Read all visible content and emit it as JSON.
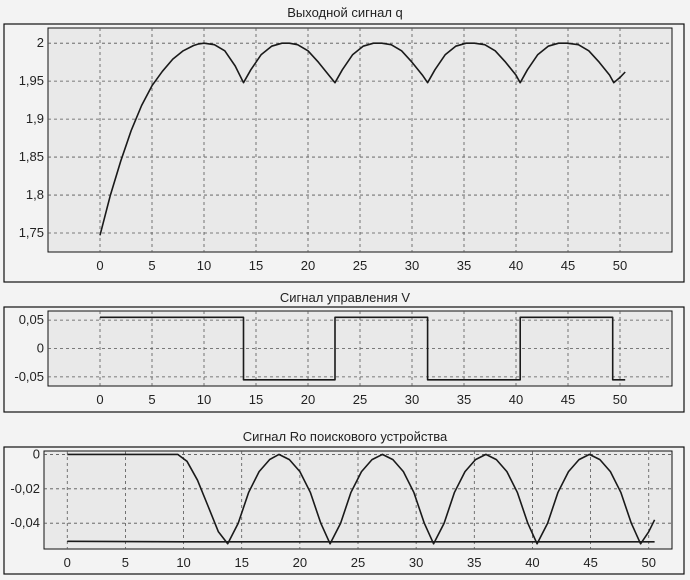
{
  "colors": {
    "background": "#f3f3f3",
    "plot_background": "#e9e9e9",
    "line": "#1a1a1a",
    "grid": "#555555",
    "frame": "#111111"
  },
  "chart_data": [
    {
      "type": "line",
      "title": "Выходной сигнал q",
      "xlabel": "",
      "ylabel": "",
      "xlim": [
        -5,
        55
      ],
      "ylim": [
        1.725,
        2.02
      ],
      "xticks": [
        0,
        5,
        10,
        15,
        20,
        25,
        30,
        35,
        40,
        45,
        50
      ],
      "xtick_labels": [
        "0",
        "5",
        "10",
        "15",
        "20",
        "25",
        "30",
        "35",
        "40",
        "45",
        "50"
      ],
      "yticks": [
        1.75,
        1.8,
        1.85,
        1.9,
        1.95,
        2.0
      ],
      "ytick_labels": [
        "1,75",
        "1,8",
        "1,85",
        "1,9",
        "1,95",
        "2"
      ],
      "grid": true,
      "series": [
        {
          "x": [
            0,
            1,
            2,
            3,
            4,
            5,
            6,
            7,
            8,
            9,
            9.5,
            10,
            11,
            12,
            13,
            13.8,
            14.5,
            15.5,
            16.5,
            17.5,
            18.2,
            19,
            20,
            21,
            22,
            22.6,
            23.3,
            24.3,
            25.3,
            26.3,
            27.1,
            28,
            29,
            30,
            31,
            31.5,
            32.2,
            33.2,
            34.2,
            35.2,
            36,
            37,
            38,
            39,
            40,
            40.4,
            41.1,
            42.1,
            43.1,
            44.1,
            44.9,
            46,
            47,
            48,
            49,
            49.4,
            50,
            50.5
          ],
          "y": [
            1.747,
            1.8,
            1.845,
            1.885,
            1.918,
            1.944,
            1.963,
            1.979,
            1.99,
            1.997,
            1.999,
            2.0,
            1.998,
            1.99,
            1.97,
            1.948,
            1.965,
            1.985,
            1.996,
            2.0,
            2.0,
            1.998,
            1.99,
            1.975,
            1.958,
            1.948,
            1.965,
            1.985,
            1.996,
            2.0,
            2.0,
            1.998,
            1.99,
            1.975,
            1.958,
            1.948,
            1.965,
            1.985,
            1.996,
            2.0,
            2.0,
            1.998,
            1.99,
            1.975,
            1.958,
            1.948,
            1.965,
            1.985,
            1.996,
            2.0,
            2.0,
            1.998,
            1.99,
            1.975,
            1.958,
            1.948,
            1.955,
            1.962
          ]
        }
      ]
    },
    {
      "type": "line",
      "title": "Сигнал управления V",
      "xlabel": "",
      "ylabel": "",
      "xlim": [
        -5,
        55
      ],
      "ylim": [
        -0.066,
        0.066
      ],
      "xticks": [
        0,
        5,
        10,
        15,
        20,
        25,
        30,
        35,
        40,
        45,
        50
      ],
      "xtick_labels": [
        "0",
        "5",
        "10",
        "15",
        "20",
        "25",
        "30",
        "35",
        "40",
        "45",
        "50"
      ],
      "yticks": [
        -0.05,
        0,
        0.05
      ],
      "ytick_labels": [
        "-0,05",
        "0",
        "0,05"
      ],
      "grid": true,
      "series": [
        {
          "x": [
            0,
            13.8,
            13.8,
            22.6,
            22.6,
            31.5,
            31.5,
            40.4,
            40.4,
            49.3,
            49.3,
            50.5
          ],
          "y": [
            0.055,
            0.055,
            -0.055,
            -0.055,
            0.055,
            0.055,
            -0.055,
            -0.055,
            0.055,
            0.055,
            -0.055,
            -0.055
          ]
        }
      ]
    },
    {
      "type": "line",
      "title": "Сигнал Ro поискового устройства",
      "xlabel": "",
      "ylabel": "",
      "xlim": [
        -2,
        52
      ],
      "ylim": [
        -0.055,
        0.002
      ],
      "xticks": [
        0,
        5,
        10,
        15,
        20,
        25,
        30,
        35,
        40,
        45,
        50
      ],
      "xtick_labels": [
        "0",
        "5",
        "10",
        "15",
        "20",
        "25",
        "30",
        "35",
        "40",
        "45",
        "50"
      ],
      "yticks": [
        -0.04,
        -0.02,
        0
      ],
      "ytick_labels": [
        "-0,04",
        "-0,02",
        "0"
      ],
      "grid": true,
      "series": [
        {
          "x": [
            0,
            9.5,
            10.3,
            11.2,
            12.1,
            13.0,
            13.8,
            14.7,
            15.6,
            16.5,
            17.4,
            18.2,
            19.1,
            20.0,
            20.9,
            21.8,
            22.6,
            23.5,
            24.4,
            25.3,
            26.2,
            27.1,
            28.0,
            28.9,
            29.8,
            30.7,
            31.5,
            32.4,
            33.3,
            34.2,
            35.1,
            36.0,
            36.9,
            37.8,
            38.7,
            39.6,
            40.4,
            41.3,
            42.2,
            43.1,
            44.0,
            44.9,
            45.8,
            46.7,
            47.6,
            48.5,
            49.3,
            50.0,
            50.5
          ],
          "y": [
            0.0,
            0.0,
            -0.004,
            -0.015,
            -0.03,
            -0.045,
            -0.052,
            -0.04,
            -0.022,
            -0.01,
            -0.003,
            0.0,
            -0.003,
            -0.01,
            -0.022,
            -0.04,
            -0.052,
            -0.04,
            -0.022,
            -0.01,
            -0.003,
            0.0,
            -0.003,
            -0.01,
            -0.022,
            -0.04,
            -0.052,
            -0.04,
            -0.022,
            -0.01,
            -0.003,
            0.0,
            -0.003,
            -0.01,
            -0.022,
            -0.04,
            -0.052,
            -0.04,
            -0.022,
            -0.01,
            -0.003,
            0.0,
            -0.003,
            -0.01,
            -0.022,
            -0.04,
            -0.052,
            -0.045,
            -0.038
          ]
        },
        {
          "x": [
            0,
            10,
            20,
            30,
            40,
            50.5
          ],
          "y": [
            -0.0505,
            -0.0508,
            -0.0508,
            -0.0508,
            -0.0508,
            -0.0508
          ]
        }
      ]
    }
  ]
}
